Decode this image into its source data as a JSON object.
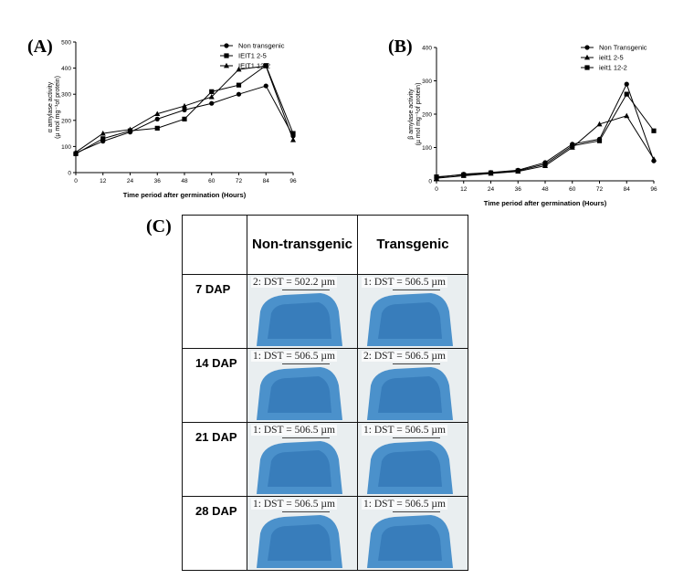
{
  "panels": {
    "a_label": "(A)",
    "b_label": "(B)",
    "c_label": "(C)"
  },
  "chart_data": [
    {
      "type": "line",
      "xlabel": "Time period after germination (Hours)",
      "ylabel_line1": "α amylase activity",
      "ylabel_line2": "(µ mol mg⁻¹of protein)",
      "x": [
        0,
        12,
        24,
        36,
        48,
        60,
        72,
        84,
        96
      ],
      "xticks": [
        "0",
        "12",
        "24",
        "36",
        "48",
        "60",
        "72",
        "84",
        "96"
      ],
      "yticks": [
        "0",
        "100",
        "200",
        "300",
        "400",
        "500"
      ],
      "ylim": [
        0,
        500
      ],
      "legend_position": "top-right",
      "series": [
        {
          "name": "Non transgenic",
          "marker": "circle",
          "values": [
            75,
            120,
            155,
            205,
            240,
            265,
            300,
            332,
            140
          ]
        },
        {
          "name": "IEIT1 2-5",
          "marker": "square",
          "values": [
            72,
            130,
            160,
            170,
            205,
            310,
            335,
            410,
            150
          ]
        },
        {
          "name": "IEIT1 12-2",
          "marker": "triangle",
          "values": [
            78,
            150,
            165,
            225,
            255,
            290,
            395,
            408,
            125
          ]
        }
      ]
    },
    {
      "type": "line",
      "xlabel": "Time period after germination (Hours)",
      "ylabel_line1": "β amylase activity",
      "ylabel_line2": "(µ mol mg⁻¹of protein)",
      "x": [
        0,
        12,
        24,
        36,
        48,
        60,
        72,
        84,
        96
      ],
      "xticks": [
        "0",
        "12",
        "24",
        "36",
        "48",
        "60",
        "72",
        "84",
        "96"
      ],
      "yticks": [
        "0",
        "100",
        "200",
        "300",
        "400"
      ],
      "ylim": [
        0,
        400
      ],
      "legend_position": "top-right",
      "series": [
        {
          "name": "Non Transgenic",
          "marker": "circle",
          "values": [
            10,
            20,
            25,
            32,
            55,
            110,
            125,
            290,
            60
          ]
        },
        {
          "name": "ieit1 2-5",
          "marker": "triangle",
          "values": [
            8,
            15,
            22,
            28,
            45,
            100,
            170,
            195,
            65
          ]
        },
        {
          "name": "ieit1 12-2",
          "marker": "square",
          "values": [
            12,
            18,
            24,
            30,
            50,
            105,
            120,
            260,
            150
          ]
        }
      ]
    }
  ],
  "table": {
    "col_headers": [
      "Non-transgenic",
      "Transgenic"
    ],
    "rows": [
      {
        "label": "7 DAP",
        "non": "2: DST = 502.2 µm",
        "trans": "1: DST = 506.5 µm"
      },
      {
        "label": "14 DAP",
        "non": "1: DST = 506.5 µm",
        "trans": "2: DST = 506.5 µm"
      },
      {
        "label": "21 DAP",
        "non": "1: DST = 506.5 µm",
        "trans": "1: DST = 506.5 µm"
      },
      {
        "label": "28 DAP",
        "non": "1: DST = 506.5 µm",
        "trans": "1: DST = 506.5 µm"
      }
    ],
    "photo_color": "#3a86c6"
  }
}
